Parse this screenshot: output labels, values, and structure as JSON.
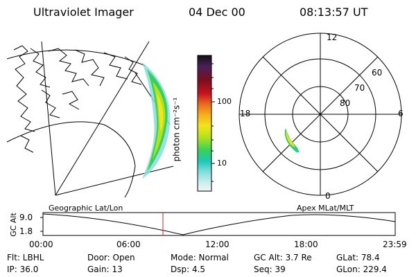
{
  "header": {
    "instrument": "Ultraviolet Imager",
    "date": "04 Dec 00",
    "time": "08:13:57 UT"
  },
  "colorbar": {
    "unit_label": "photon cm⁻²s⁻¹",
    "ticks": [
      "100",
      "10"
    ],
    "colors": [
      "#111111",
      "#4a1f5c",
      "#7a0e1e",
      "#c6121e",
      "#ec6a1d",
      "#f6b01c",
      "#f3e51a",
      "#b6e21c",
      "#37d05c",
      "#1fc8b8",
      "#85dede",
      "#cfeeee",
      "#f2f6f6"
    ]
  },
  "polar_plot": {
    "mlt_labels": {
      "top": "12",
      "left": "18",
      "right": "6",
      "bottom": "0"
    },
    "lat_labels": [
      "60",
      "70",
      "80"
    ]
  },
  "panel_labels": {
    "left": "Geographic Lat/Lon",
    "right": "Apex MLat/MLT"
  },
  "orbit_plot": {
    "ylabel": "GC Alt",
    "yticks": [
      "9.0",
      "1.8"
    ],
    "xticks": [
      "00:00",
      "06:00",
      "12:00",
      "18:00",
      "23:59"
    ],
    "marker_time": "08:13:57",
    "line_color": "#000000",
    "marker_color": "#d0202a"
  },
  "status": {
    "row1": {
      "filter": "Flt: LBHL",
      "door": "Door: Open",
      "mode": "Mode: Normal",
      "gc_alt": "GC Alt: 3.7 Re",
      "glat": "GLat:  78.4"
    },
    "row2": {
      "ip": "IP: 36.0",
      "gain": "Gain: 13",
      "dsp": "Dsp:     4.5",
      "seq": "Seq: 39",
      "glon": "GLon: 229.4"
    }
  }
}
